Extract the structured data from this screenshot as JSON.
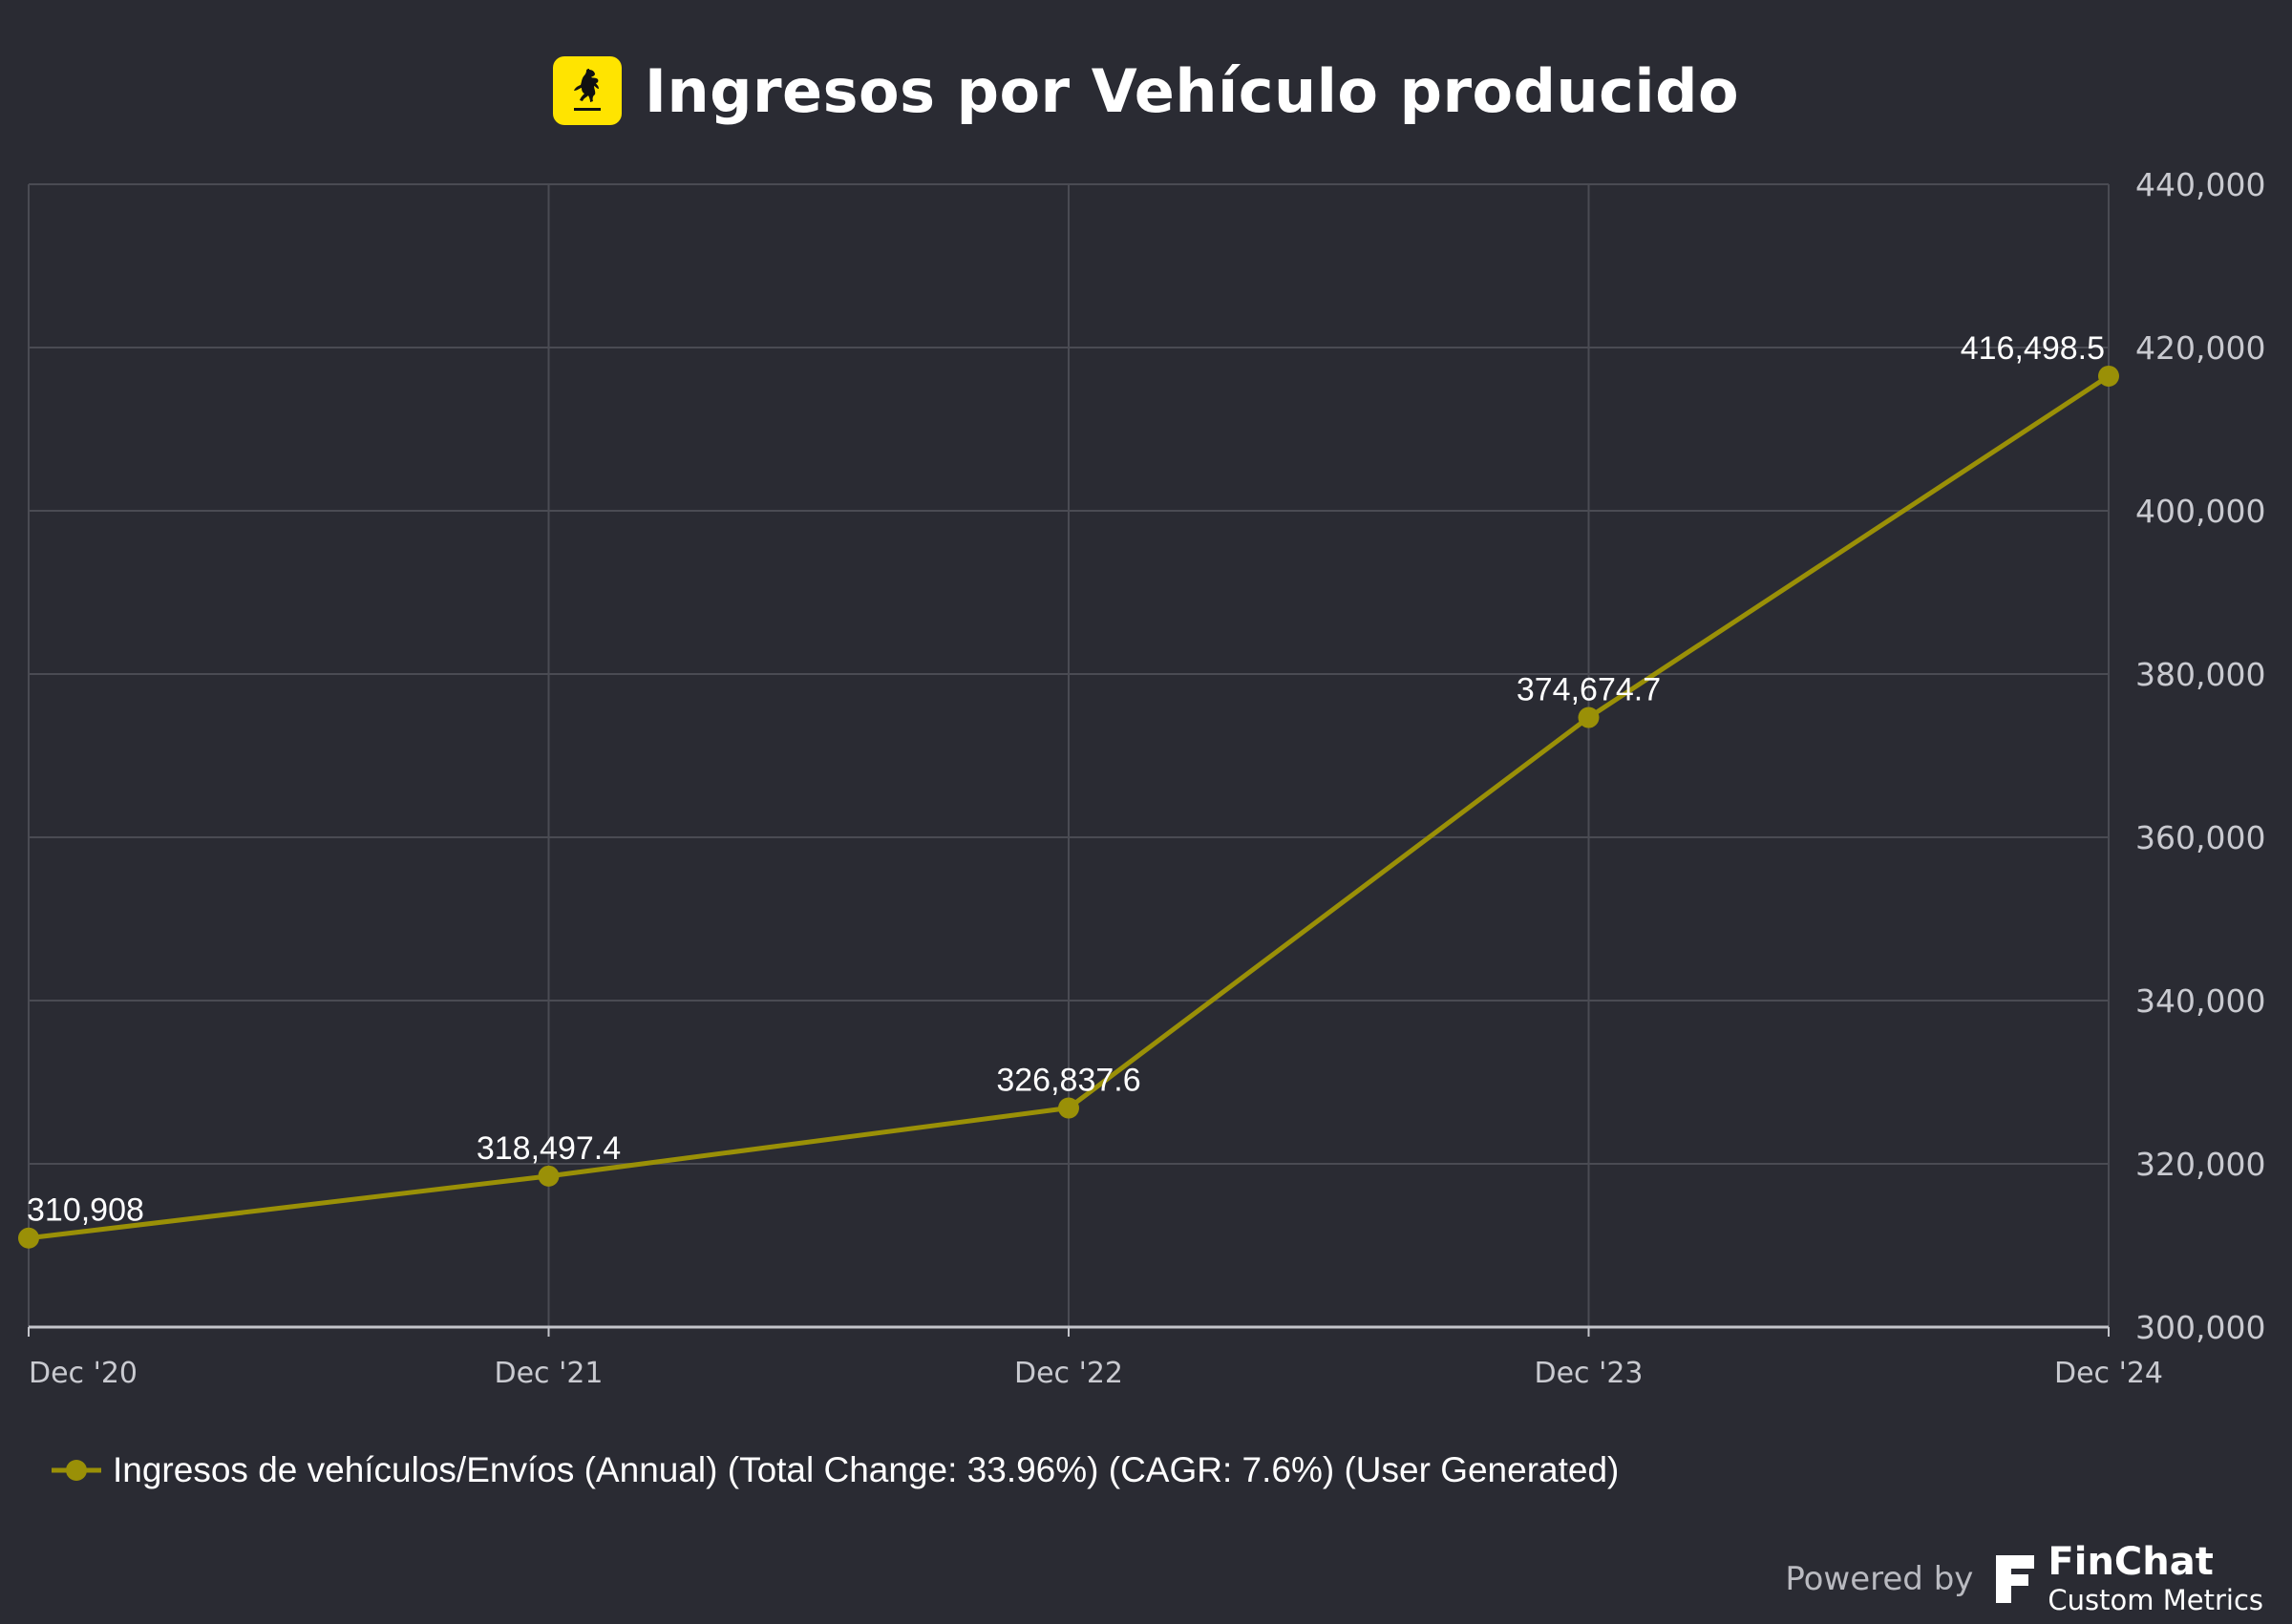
{
  "header": {
    "title": "Ingresos por Vehículo producido",
    "logo_icon": "ferrari-prancing-horse-icon",
    "logo_color": "#ffe400"
  },
  "chart_data": {
    "type": "line",
    "title": "Ingresos por Vehículo producido",
    "xlabel": "",
    "ylabel": "",
    "categories": [
      "Dec '20",
      "Dec '21",
      "Dec '22",
      "Dec '23",
      "Dec '24"
    ],
    "series": [
      {
        "name": "Ingresos de vehículos/Envíos (Annual) (Total Change: 33.96%) (CAGR: 7.6%) (User Generated)",
        "values": [
          310908,
          318497.4,
          326837.6,
          374674.7,
          416498.5
        ],
        "data_labels": [
          "310,908",
          "318,497.4",
          "326,837.6",
          "374,674.7",
          "416,498.5"
        ],
        "color": "#9a9007"
      }
    ],
    "ylim": [
      300000,
      440000
    ],
    "yticks": [
      300000,
      320000,
      340000,
      360000,
      380000,
      400000,
      420000,
      440000
    ],
    "ytick_labels": [
      "300,000",
      "320,000",
      "340,000",
      "360,000",
      "380,000",
      "400,000",
      "420,000",
      "440,000"
    ],
    "y_axis_side": "right",
    "grid": true,
    "legend_position": "bottom-left"
  },
  "legend": {
    "label": "Ingresos de vehículos/Envíos (Annual) (Total Change: 33.96%) (CAGR: 7.6%) (User Generated)"
  },
  "footer": {
    "powered_by": "Powered by",
    "brand": "FinChat",
    "brand_sub": "Custom Metrics",
    "brand_icon": "finchat-logo-icon"
  },
  "colors": {
    "background": "#2a2b33",
    "grid": "#4a4b53",
    "axis": "#c4c5cb",
    "tick_text": "#c9cad0",
    "label_text": "#ffffff"
  }
}
